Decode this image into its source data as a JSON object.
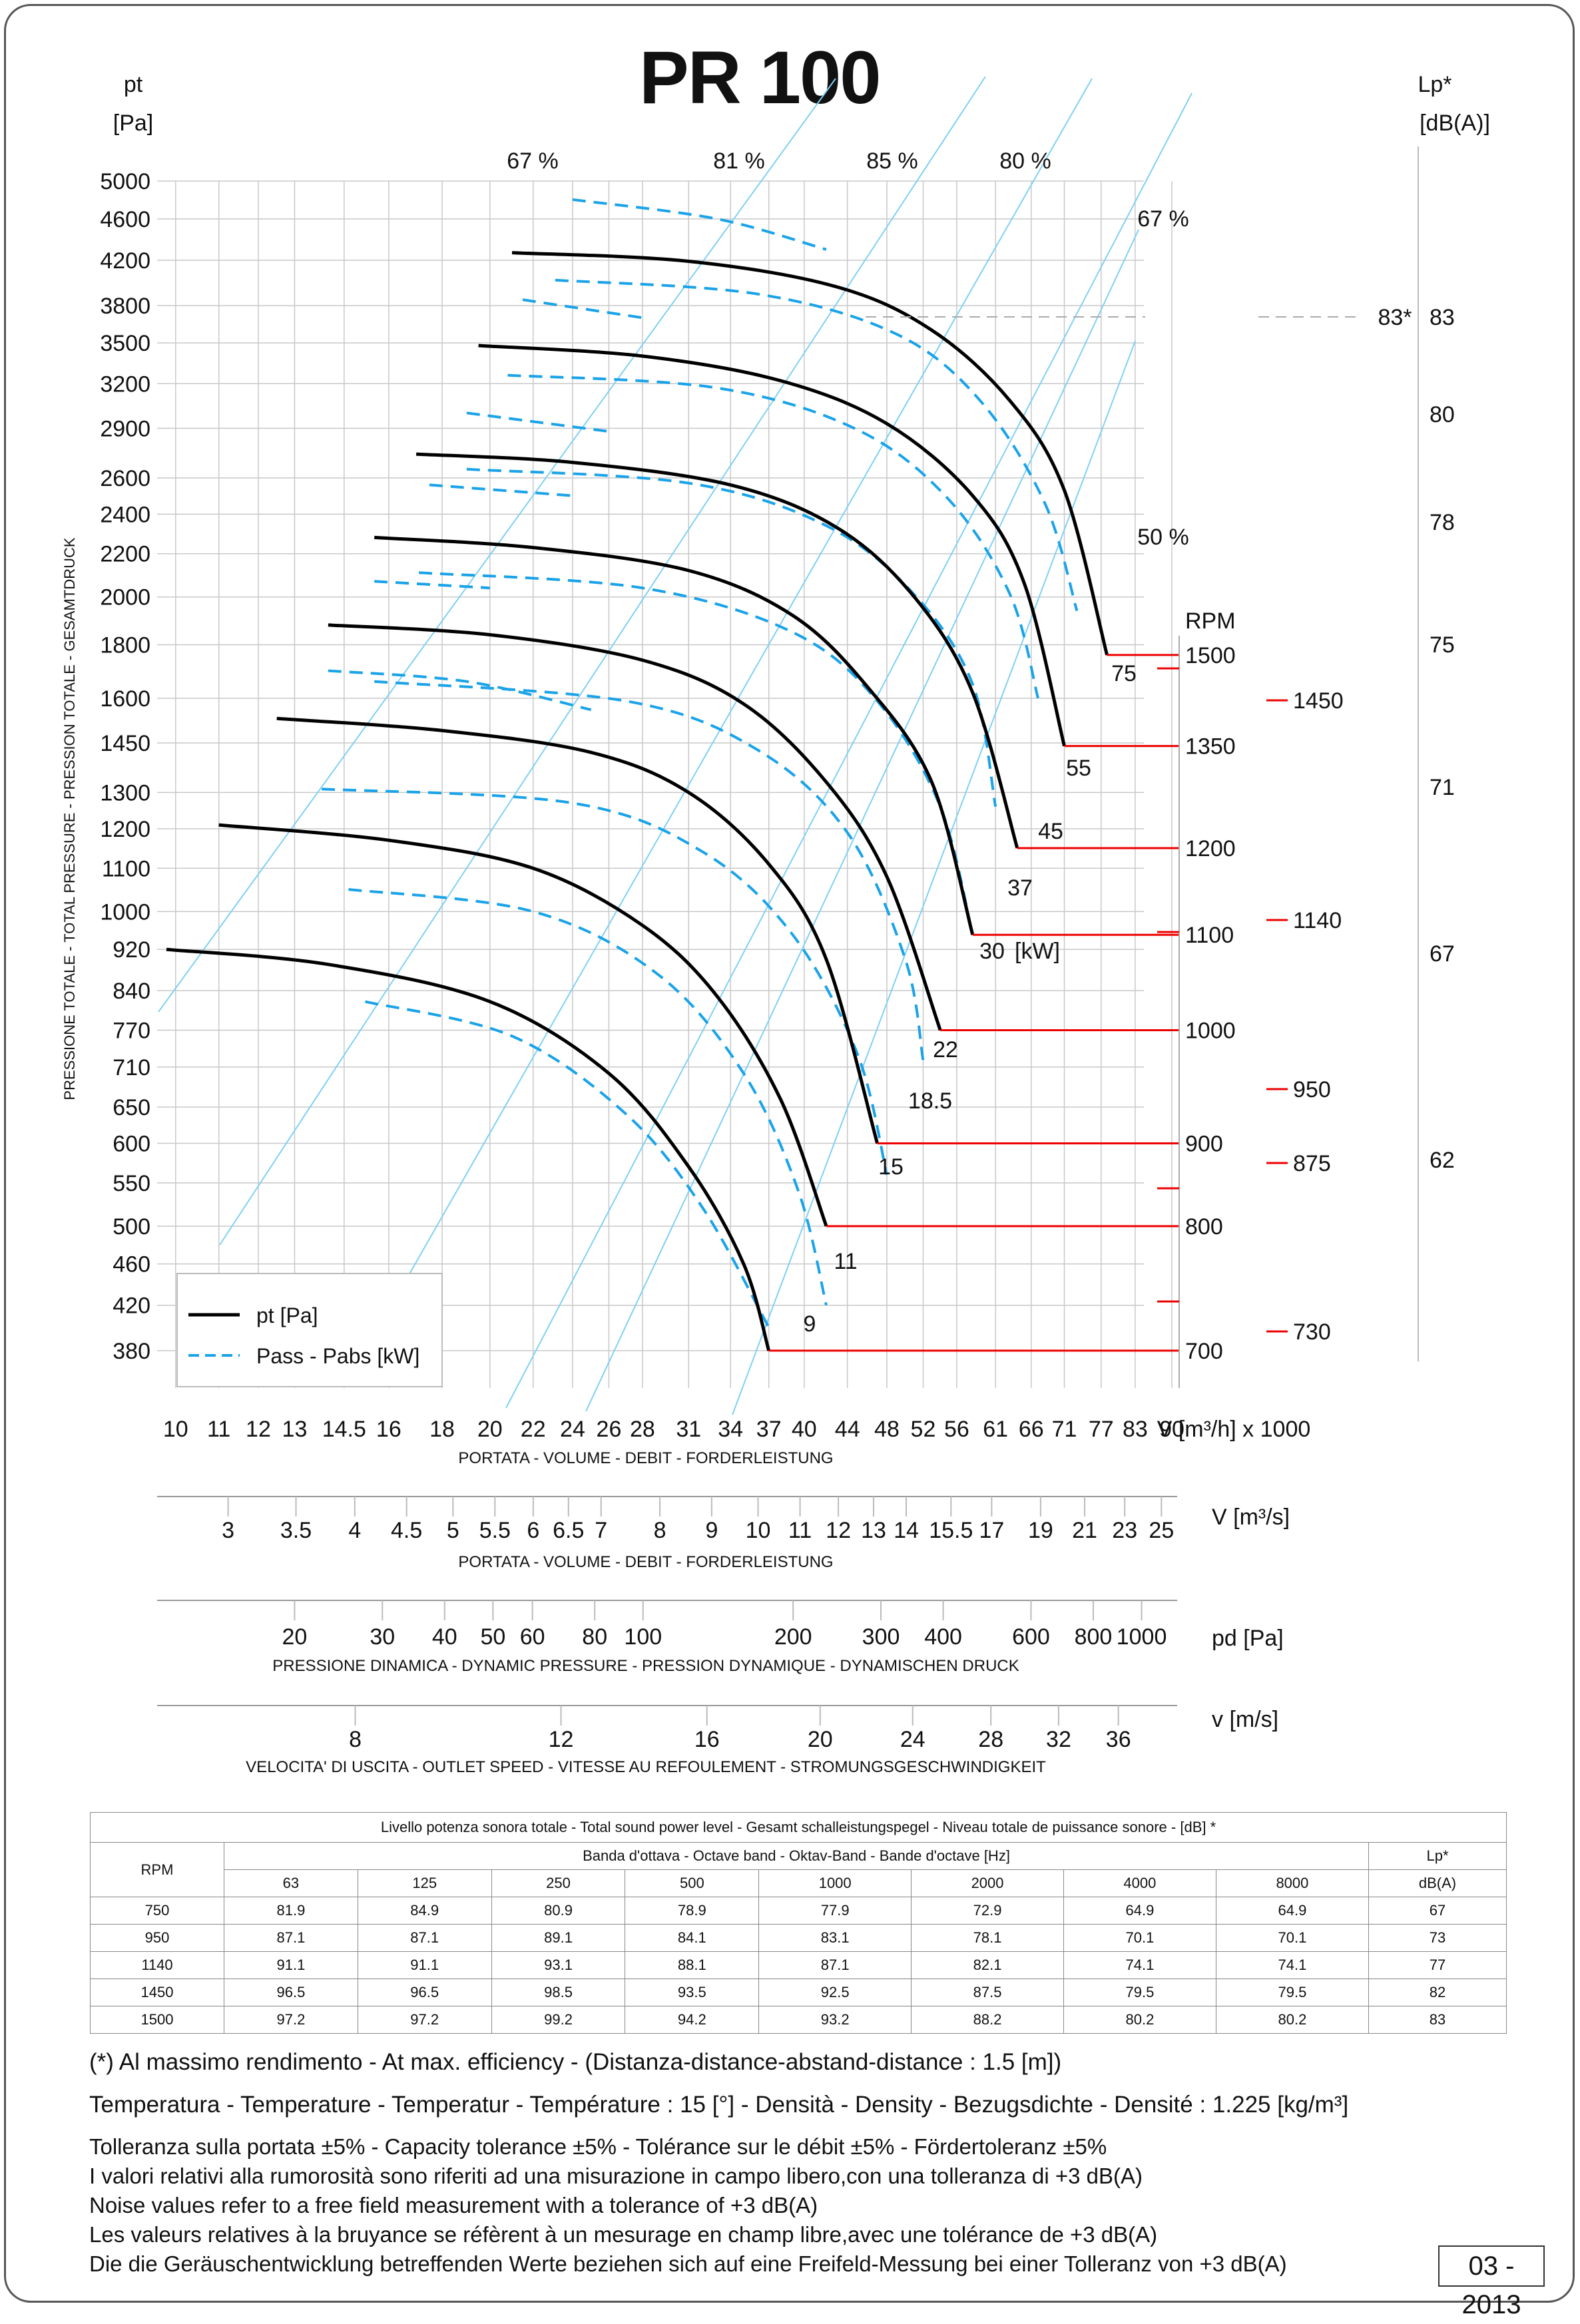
{
  "title": "PR 100",
  "date": "03 - 2013",
  "chart_data": {
    "type": "line",
    "title": "PR 100",
    "y_axis": {
      "unit_top": "pt",
      "unit_bottom": "[Pa]",
      "label": "PRESSIONE TOTALE - TOTAL PRESSURE - PRESSION TOTALE - GESAMTDRUCK",
      "scale": "log",
      "ticks": [
        5000,
        4600,
        4200,
        3800,
        3500,
        3200,
        2900,
        2600,
        2400,
        2200,
        2000,
        1800,
        1600,
        1450,
        1300,
        1200,
        1100,
        1000,
        920,
        840,
        770,
        710,
        650,
        600,
        550,
        500,
        460,
        420,
        380
      ],
      "range": [
        350,
        5000
      ]
    },
    "x_axis": {
      "unit": "V [m³/h]  x 1000",
      "label": "PORTATA - VOLUME - DEBIT - FORDERLEISTUNG",
      "scale": "log",
      "ticks": [
        "10",
        "11",
        "12",
        "13",
        "14.5",
        "16",
        "18",
        "20",
        "22",
        "24",
        "26",
        "28",
        "31",
        "34",
        "37",
        "40",
        "44",
        "48",
        "52",
        "56",
        "61",
        "66",
        "71",
        "77",
        "83",
        "90"
      ],
      "range": [
        9.6,
        90
      ]
    },
    "lp_axis": {
      "unit_top": "Lp*",
      "unit_bottom": "[dB(A)]",
      "ticks": [
        "83",
        "80",
        "78",
        "75",
        "71",
        "67",
        "62"
      ],
      "marker": "83*"
    },
    "efficiency_labels": {
      "top": [
        "67 %",
        "81 %",
        "85 %",
        "80 %"
      ],
      "right": [
        "67 %",
        "50 %"
      ]
    },
    "rpm_header": "RPM",
    "rpm_lines": [
      "700",
      "800",
      "900",
      "1000",
      "1100",
      "1200",
      "1350",
      "1500"
    ],
    "rpm_extra": [
      "730",
      "875",
      "950",
      "1140",
      "1450"
    ],
    "power_labels": [
      "9",
      "11",
      "15",
      "18.5",
      "22",
      "30",
      "[kW]",
      "37",
      "45",
      "55",
      "75"
    ],
    "legend": [
      {
        "name": "pt [Pa]",
        "style": "solid"
      },
      {
        "name": "Pass - Pabs [kW]",
        "style": "dashed"
      }
    ],
    "series": [
      {
        "rpm": 700,
        "points": [
          [
            9.8,
            920
          ],
          [
            14,
            890
          ],
          [
            20,
            820
          ],
          [
            26,
            700
          ],
          [
            31,
            570
          ],
          [
            35,
            460
          ],
          [
            37,
            380
          ]
        ]
      },
      {
        "rpm": 800,
        "points": [
          [
            11,
            1210
          ],
          [
            16,
            1170
          ],
          [
            22,
            1100
          ],
          [
            28,
            970
          ],
          [
            33,
            830
          ],
          [
            38,
            660
          ],
          [
            42,
            500
          ]
        ]
      },
      {
        "rpm": 900,
        "points": [
          [
            12.5,
            1530
          ],
          [
            18,
            1490
          ],
          [
            25,
            1420
          ],
          [
            31,
            1300
          ],
          [
            37,
            1110
          ],
          [
            42,
            900
          ],
          [
            47,
            600
          ]
        ]
      },
      {
        "rpm": 1000,
        "points": [
          [
            14,
            1880
          ],
          [
            20,
            1840
          ],
          [
            28,
            1740
          ],
          [
            35,
            1580
          ],
          [
            42,
            1330
          ],
          [
            48,
            1080
          ],
          [
            54,
            770
          ]
        ]
      },
      {
        "rpm": 1100,
        "points": [
          [
            15.5,
            2280
          ],
          [
            22,
            2230
          ],
          [
            31,
            2120
          ],
          [
            39,
            1920
          ],
          [
            46,
            1640
          ],
          [
            53,
            1330
          ],
          [
            58,
            950
          ]
        ]
      },
      {
        "rpm": 1200,
        "points": [
          [
            17,
            2740
          ],
          [
            24,
            2690
          ],
          [
            34,
            2560
          ],
          [
            43,
            2330
          ],
          [
            51,
            2000
          ],
          [
            58,
            1620
          ],
          [
            64,
            1150
          ]
        ]
      },
      {
        "rpm": 1350,
        "points": [
          [
            19.5,
            3480
          ],
          [
            28,
            3400
          ],
          [
            38,
            3220
          ],
          [
            48,
            2930
          ],
          [
            58,
            2500
          ],
          [
            65,
            2060
          ],
          [
            71,
            1440
          ]
        ]
      },
      {
        "rpm": 1500,
        "points": [
          [
            21,
            4270
          ],
          [
            31,
            4190
          ],
          [
            43,
            3960
          ],
          [
            53,
            3600
          ],
          [
            63,
            3080
          ],
          [
            71,
            2530
          ],
          [
            78,
            1760
          ]
        ]
      }
    ],
    "grid": true,
    "legend_position": "bottom-left"
  },
  "axes_extra": [
    {
      "unit": "V  [m³/s]",
      "label": "PORTATA - VOLUME - DEBIT - FORDERLEISTUNG",
      "ticks": [
        [
          "3",
          3
        ],
        [
          "3.5",
          3.5
        ],
        [
          "4",
          4
        ],
        [
          "4.5",
          4.5
        ],
        [
          "5",
          5
        ],
        [
          "5.5",
          5.5
        ],
        [
          "6",
          6
        ],
        [
          "6.5",
          6.5
        ],
        [
          "7",
          7
        ],
        [
          "8",
          8
        ],
        [
          "9",
          9
        ],
        [
          "10",
          10
        ],
        [
          "11",
          11
        ],
        [
          "12",
          12
        ],
        [
          "13",
          13
        ],
        [
          "14",
          14
        ],
        [
          "15.5",
          15.5
        ],
        [
          "17",
          17
        ],
        [
          "19",
          19
        ],
        [
          "21",
          21
        ],
        [
          "23",
          23
        ],
        [
          "25",
          25
        ]
      ]
    },
    {
      "unit": "pd  [Pa]",
      "label": "PRESSIONE DINAMICA - DYNAMIC PRESSURE - PRESSION DYNAMIQUE - DYNAMISCHEN DRUCK",
      "ticks": [
        [
          "20",
          20
        ],
        [
          "30",
          30
        ],
        [
          "40",
          40
        ],
        [
          "50",
          50
        ],
        [
          "60",
          60
        ],
        [
          "80",
          80
        ],
        [
          "100",
          100
        ],
        [
          "200",
          200
        ],
        [
          "300",
          300
        ],
        [
          "400",
          400
        ],
        [
          "600",
          600
        ],
        [
          "800",
          800
        ],
        [
          "1000",
          1000
        ]
      ]
    },
    {
      "unit": "v  [m/s]",
      "label": "VELOCITA' DI USCITA - OUTLET SPEED - VITESSE AU REFOULEMENT - STROMUNGSGESCHWINDIGKEIT",
      "ticks": [
        [
          "8",
          8
        ],
        [
          "12",
          12
        ],
        [
          "16",
          16
        ],
        [
          "20",
          20
        ],
        [
          "24",
          24
        ],
        [
          "28",
          28
        ],
        [
          "32",
          32
        ],
        [
          "36",
          36
        ]
      ]
    }
  ],
  "sound_table": {
    "caption": "Livello potenza sonora totale - Total sound power level - Gesamt schalleistungspegel - Niveau totale de puissance sonore - [dB]   *",
    "band_header": "Banda d'ottava - Octave band - Oktav-Band - Bande d'octave [Hz]",
    "rpm_header": "RPM",
    "lp_header_1": "Lp*",
    "lp_header_2": "dB(A)",
    "bands": [
      "63",
      "125",
      "250",
      "500",
      "1000",
      "2000",
      "4000",
      "8000"
    ],
    "rows": [
      {
        "rpm": "750",
        "values": [
          "81.9",
          "84.9",
          "80.9",
          "78.9",
          "77.9",
          "72.9",
          "64.9",
          "64.9"
        ],
        "lp": "67"
      },
      {
        "rpm": "950",
        "values": [
          "87.1",
          "87.1",
          "89.1",
          "84.1",
          "83.1",
          "78.1",
          "70.1",
          "70.1"
        ],
        "lp": "73"
      },
      {
        "rpm": "1140",
        "values": [
          "91.1",
          "91.1",
          "93.1",
          "88.1",
          "87.1",
          "82.1",
          "74.1",
          "74.1"
        ],
        "lp": "77"
      },
      {
        "rpm": "1450",
        "values": [
          "96.5",
          "96.5",
          "98.5",
          "93.5",
          "92.5",
          "87.5",
          "79.5",
          "79.5"
        ],
        "lp": "82"
      },
      {
        "rpm": "1500",
        "values": [
          "97.2",
          "97.2",
          "99.2",
          "94.2",
          "93.2",
          "88.2",
          "80.2",
          "80.2"
        ],
        "lp": "83"
      }
    ]
  },
  "notes": {
    "efficiency": "(*) Al massimo rendimento - At max. efficiency - (Distanza-distance-abstand-distance : 1.5 [m])",
    "conditions": "Temperatura - Temperature - Temperatur - Température : 15 [°]  -  Densità - Density - Bezugsdichte - Densité : 1.225 [kg/m³]",
    "tolerance": "Tolleranza sulla portata  ±5% - Capacity tolerance ±5% - Tolérance sur le débit ±5% - Fördertoleranz ±5%",
    "noise_it": "I valori relativi alla rumorosità sono riferiti ad una misurazione in campo libero,con una tolleranza di +3 dB(A)",
    "noise_en": "Noise values refer to a free field measurement with a tolerance of +3 dB(A)",
    "noise_fr": "Les valeurs relatives à la bruyance se réfèrent à un mesurage en champ libre,avec une tolérance de +3 dB(A)",
    "noise_de": "Die die Geräuschentwicklung betreffenden Werte beziehen sich auf eine Freifeld-Messung bei einer Tolleranz von +3 dB(A)"
  }
}
